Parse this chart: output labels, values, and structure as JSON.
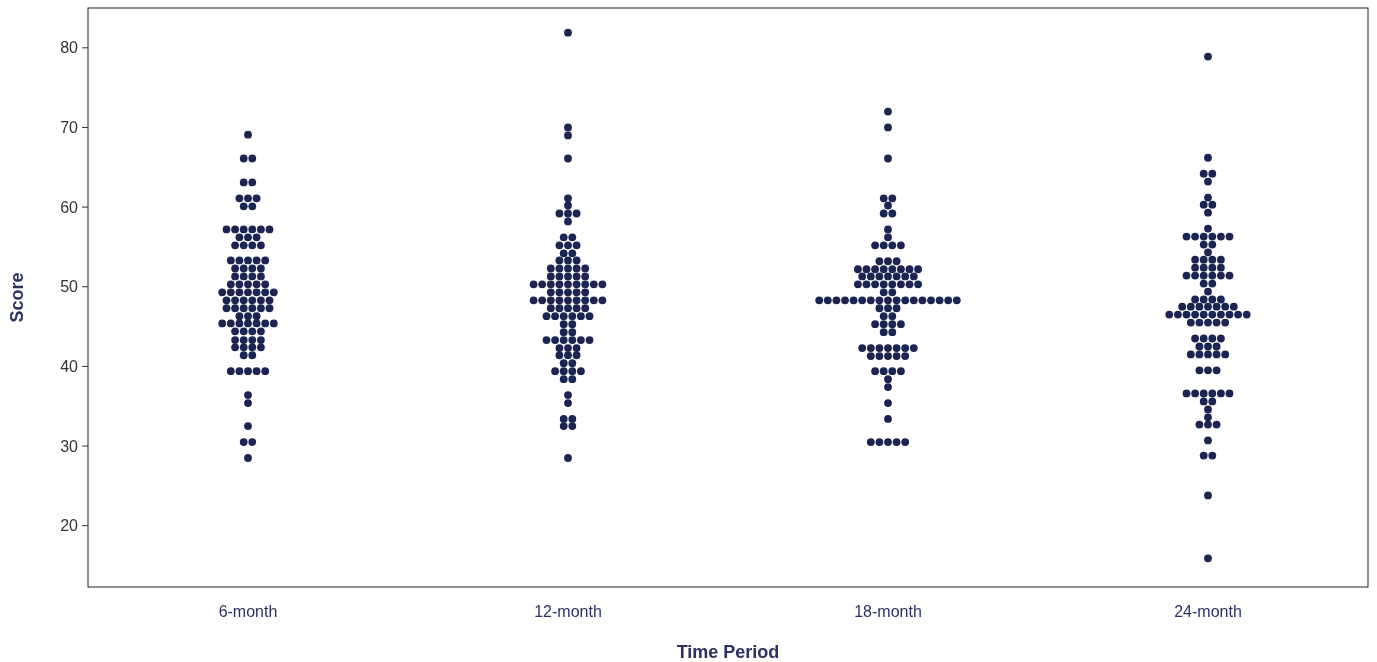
{
  "chart_data": {
    "type": "scatter",
    "xlabel": "Time Period",
    "ylabel": "Score",
    "categories": [
      "6-month",
      "12-month",
      "18-month",
      "24-month"
    ],
    "ylim": [
      12.3,
      85
    ],
    "yticks": [
      20,
      30,
      40,
      50,
      60,
      70,
      80
    ],
    "marker": "circle",
    "series": [
      {
        "color": "#1c2452",
        "x": [
          "6-month",
          "6-month",
          "6-month",
          "6-month",
          "6-month",
          "6-month",
          "6-month",
          "6-month",
          "6-month",
          "6-month",
          "6-month",
          "6-month",
          "6-month",
          "6-month",
          "6-month",
          "6-month",
          "6-month",
          "6-month",
          "6-month",
          "6-month",
          "6-month",
          "6-month",
          "6-month",
          "6-month",
          "6-month",
          "6-month",
          "6-month",
          "6-month",
          "6-month",
          "6-month",
          "6-month",
          "6-month",
          "6-month",
          "6-month",
          "6-month",
          "6-month",
          "6-month",
          "6-month",
          "6-month",
          "6-month",
          "6-month",
          "6-month",
          "6-month",
          "6-month",
          "6-month",
          "6-month",
          "6-month",
          "6-month",
          "6-month",
          "6-month",
          "6-month",
          "6-month",
          "6-month",
          "6-month",
          "6-month",
          "6-month",
          "6-month",
          "6-month",
          "6-month",
          "6-month",
          "6-month",
          "6-month",
          "6-month",
          "6-month",
          "6-month",
          "6-month",
          "6-month",
          "6-month",
          "6-month",
          "6-month",
          "6-month",
          "6-month",
          "6-month",
          "6-month",
          "6-month",
          "6-month",
          "6-month",
          "6-month",
          "6-month",
          "6-month",
          "6-month",
          "6-month",
          "6-month",
          "6-month",
          "6-month",
          "6-month",
          "6-month",
          "6-month",
          "6-month",
          "6-month",
          "6-month",
          "6-month",
          "6-month",
          "6-month",
          "6-month"
        ],
        "values": [
          69.1,
          66.1,
          66.1,
          63.1,
          63.1,
          61.1,
          61.1,
          61.1,
          60.1,
          60.1,
          57.2,
          57.2,
          57.2,
          57.2,
          57.2,
          57.2,
          56.2,
          56.2,
          56.2,
          55.2,
          55.2,
          55.2,
          55.2,
          53.3,
          53.3,
          53.3,
          53.3,
          53.3,
          52.3,
          52.3,
          52.3,
          52.3,
          51.3,
          51.3,
          51.3,
          51.3,
          50.3,
          50.3,
          50.3,
          50.3,
          50.3,
          49.3,
          49.3,
          49.3,
          49.3,
          49.3,
          49.3,
          49.3,
          48.3,
          48.3,
          48.3,
          48.3,
          48.3,
          48.3,
          47.3,
          47.3,
          47.3,
          47.3,
          47.3,
          47.3,
          46.3,
          46.3,
          46.3,
          45.4,
          45.4,
          45.4,
          45.4,
          45.4,
          45.4,
          45.4,
          44.4,
          44.4,
          44.4,
          44.4,
          43.3,
          43.3,
          43.3,
          43.3,
          42.4,
          42.4,
          42.4,
          42.4,
          41.4,
          41.4,
          39.4,
          39.4,
          39.4,
          39.4,
          39.4,
          36.4,
          35.4,
          32.5,
          30.5,
          30.5,
          28.5
        ]
      },
      {
        "color": "#1c2452",
        "x": [
          "12-month",
          "12-month",
          "12-month",
          "12-month",
          "12-month",
          "12-month",
          "12-month",
          "12-month",
          "12-month",
          "12-month",
          "12-month",
          "12-month",
          "12-month",
          "12-month",
          "12-month",
          "12-month",
          "12-month",
          "12-month",
          "12-month",
          "12-month",
          "12-month",
          "12-month",
          "12-month",
          "12-month",
          "12-month",
          "12-month",
          "12-month",
          "12-month",
          "12-month",
          "12-month",
          "12-month",
          "12-month",
          "12-month",
          "12-month",
          "12-month",
          "12-month",
          "12-month",
          "12-month",
          "12-month",
          "12-month",
          "12-month",
          "12-month",
          "12-month",
          "12-month",
          "12-month",
          "12-month",
          "12-month",
          "12-month",
          "12-month",
          "12-month",
          "12-month",
          "12-month",
          "12-month",
          "12-month",
          "12-month",
          "12-month",
          "12-month",
          "12-month",
          "12-month",
          "12-month",
          "12-month",
          "12-month",
          "12-month",
          "12-month",
          "12-month",
          "12-month",
          "12-month",
          "12-month",
          "12-month",
          "12-month",
          "12-month",
          "12-month",
          "12-month",
          "12-month",
          "12-month",
          "12-month",
          "12-month",
          "12-month",
          "12-month",
          "12-month",
          "12-month",
          "12-month",
          "12-month",
          "12-month",
          "12-month",
          "12-month",
          "12-month",
          "12-month",
          "12-month",
          "12-month",
          "12-month",
          "12-month",
          "12-month",
          "12-month",
          "12-month"
        ],
        "values": [
          81.9,
          70.0,
          69.0,
          66.1,
          61.1,
          60.2,
          59.2,
          59.2,
          59.2,
          58.2,
          56.2,
          56.2,
          55.2,
          55.2,
          55.2,
          54.2,
          54.2,
          53.3,
          53.3,
          53.3,
          52.3,
          52.3,
          52.3,
          52.3,
          52.3,
          51.3,
          51.3,
          51.3,
          51.3,
          51.3,
          50.3,
          50.3,
          50.3,
          50.3,
          50.3,
          50.3,
          50.3,
          50.3,
          50.3,
          49.3,
          49.3,
          49.3,
          49.3,
          49.3,
          48.3,
          48.3,
          48.3,
          48.3,
          48.3,
          48.3,
          48.3,
          48.3,
          48.3,
          47.3,
          47.3,
          47.3,
          47.3,
          47.3,
          46.3,
          46.3,
          46.3,
          46.3,
          46.3,
          46.3,
          45.3,
          45.3,
          44.3,
          44.3,
          43.3,
          43.3,
          43.3,
          43.3,
          43.3,
          43.3,
          42.3,
          42.3,
          42.3,
          41.4,
          41.4,
          41.4,
          40.4,
          40.4,
          39.4,
          39.4,
          39.4,
          39.4,
          38.4,
          38.4,
          36.4,
          35.4,
          33.4,
          33.4,
          32.5,
          32.5,
          28.5
        ]
      },
      {
        "color": "#1c2452",
        "x": [
          "18-month",
          "18-month",
          "18-month",
          "18-month",
          "18-month",
          "18-month",
          "18-month",
          "18-month",
          "18-month",
          "18-month",
          "18-month",
          "18-month",
          "18-month",
          "18-month",
          "18-month",
          "18-month",
          "18-month",
          "18-month",
          "18-month",
          "18-month",
          "18-month",
          "18-month",
          "18-month",
          "18-month",
          "18-month",
          "18-month",
          "18-month",
          "18-month",
          "18-month",
          "18-month",
          "18-month",
          "18-month",
          "18-month",
          "18-month",
          "18-month",
          "18-month",
          "18-month",
          "18-month",
          "18-month",
          "18-month",
          "18-month",
          "18-month",
          "18-month",
          "18-month",
          "18-month",
          "18-month",
          "18-month",
          "18-month",
          "18-month",
          "18-month",
          "18-month",
          "18-month",
          "18-month",
          "18-month",
          "18-month",
          "18-month",
          "18-month",
          "18-month",
          "18-month",
          "18-month",
          "18-month",
          "18-month",
          "18-month",
          "18-month",
          "18-month",
          "18-month",
          "18-month",
          "18-month",
          "18-month",
          "18-month",
          "18-month",
          "18-month",
          "18-month",
          "18-month",
          "18-month",
          "18-month",
          "18-month",
          "18-month",
          "18-month",
          "18-month",
          "18-month",
          "18-month",
          "18-month",
          "18-month",
          "18-month",
          "18-month",
          "18-month",
          "18-month",
          "18-month",
          "18-month",
          "18-month",
          "18-month",
          "18-month",
          "18-month",
          "18-month"
        ],
        "values": [
          72.0,
          70.0,
          66.1,
          61.1,
          61.1,
          60.2,
          59.2,
          59.2,
          57.2,
          56.2,
          55.2,
          55.2,
          55.2,
          55.2,
          53.2,
          53.2,
          53.2,
          52.2,
          52.2,
          52.2,
          52.2,
          52.2,
          52.2,
          52.2,
          52.2,
          51.3,
          51.3,
          51.3,
          51.3,
          51.3,
          51.3,
          51.3,
          50.3,
          50.3,
          50.3,
          50.3,
          50.3,
          50.3,
          50.3,
          50.3,
          49.3,
          49.3,
          48.3,
          48.3,
          48.3,
          48.3,
          48.3,
          48.3,
          48.3,
          48.3,
          48.3,
          48.3,
          48.3,
          48.3,
          48.3,
          48.3,
          48.3,
          48.3,
          48.3,
          47.3,
          47.3,
          47.3,
          46.3,
          46.3,
          45.3,
          45.3,
          45.3,
          45.3,
          44.3,
          44.3,
          42.3,
          42.3,
          42.3,
          42.3,
          42.3,
          42.3,
          42.3,
          41.3,
          41.3,
          41.3,
          41.3,
          41.3,
          39.4,
          39.4,
          39.4,
          39.4,
          38.4,
          37.4,
          35.4,
          33.4,
          30.5,
          30.5,
          30.5,
          30.5,
          30.5
        ]
      },
      {
        "color": "#1c2452",
        "x": [
          "24-month",
          "24-month",
          "24-month",
          "24-month",
          "24-month",
          "24-month",
          "24-month",
          "24-month",
          "24-month",
          "24-month",
          "24-month",
          "24-month",
          "24-month",
          "24-month",
          "24-month",
          "24-month",
          "24-month",
          "24-month",
          "24-month",
          "24-month",
          "24-month",
          "24-month",
          "24-month",
          "24-month",
          "24-month",
          "24-month",
          "24-month",
          "24-month",
          "24-month",
          "24-month",
          "24-month",
          "24-month",
          "24-month",
          "24-month",
          "24-month",
          "24-month",
          "24-month",
          "24-month",
          "24-month",
          "24-month",
          "24-month",
          "24-month",
          "24-month",
          "24-month",
          "24-month",
          "24-month",
          "24-month",
          "24-month",
          "24-month",
          "24-month",
          "24-month",
          "24-month",
          "24-month",
          "24-month",
          "24-month",
          "24-month",
          "24-month",
          "24-month",
          "24-month",
          "24-month",
          "24-month",
          "24-month",
          "24-month",
          "24-month",
          "24-month",
          "24-month",
          "24-month",
          "24-month",
          "24-month",
          "24-month",
          "24-month",
          "24-month",
          "24-month",
          "24-month",
          "24-month",
          "24-month",
          "24-month",
          "24-month",
          "24-month",
          "24-month",
          "24-month",
          "24-month",
          "24-month",
          "24-month",
          "24-month",
          "24-month",
          "24-month",
          "24-month",
          "24-month",
          "24-month",
          "24-month",
          "24-month",
          "24-month",
          "24-month",
          "24-month"
        ],
        "values": [
          78.9,
          66.2,
          64.2,
          64.2,
          63.2,
          61.2,
          60.3,
          60.3,
          59.3,
          57.3,
          56.3,
          56.3,
          56.3,
          56.3,
          56.3,
          56.3,
          55.3,
          55.3,
          54.3,
          53.4,
          53.4,
          53.4,
          53.4,
          52.4,
          52.4,
          52.4,
          52.4,
          51.4,
          51.4,
          51.4,
          51.4,
          51.4,
          51.4,
          50.4,
          50.4,
          49.4,
          48.4,
          48.4,
          48.4,
          48.4,
          47.5,
          47.5,
          47.5,
          47.5,
          47.5,
          47.5,
          47.5,
          46.5,
          46.5,
          46.5,
          46.5,
          46.5,
          46.5,
          46.5,
          46.5,
          46.5,
          46.5,
          45.5,
          45.5,
          45.5,
          45.5,
          45.5,
          43.5,
          43.5,
          43.5,
          43.5,
          42.5,
          42.5,
          42.5,
          41.5,
          41.5,
          41.5,
          41.5,
          41.5,
          39.5,
          39.5,
          39.5,
          36.6,
          36.6,
          36.6,
          36.6,
          36.6,
          36.6,
          35.6,
          35.6,
          34.6,
          33.6,
          32.7,
          32.7,
          32.7,
          30.7,
          28.8,
          28.8,
          23.8,
          15.9
        ]
      }
    ]
  }
}
